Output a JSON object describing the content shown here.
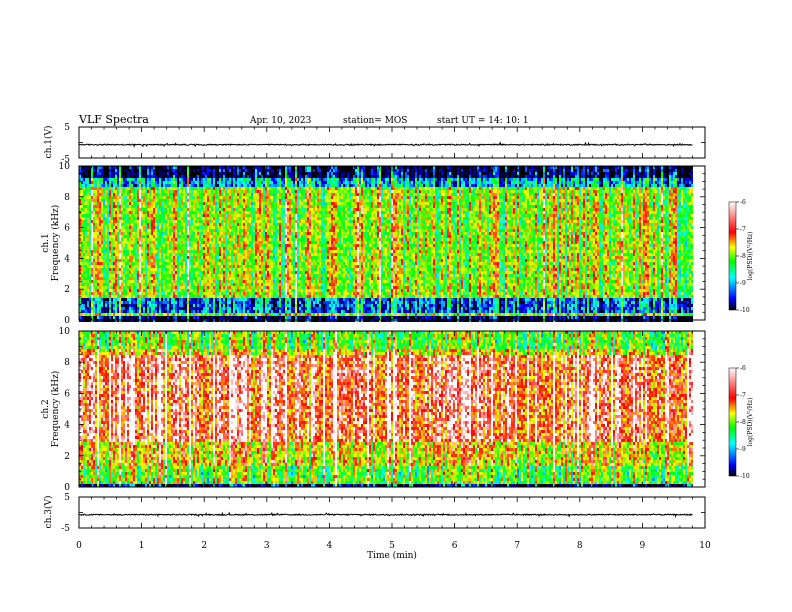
{
  "header": {
    "title": "VLF Spectra",
    "date": "Apr. 10, 2023",
    "station": "station= MOS",
    "start_ut": "start  UT =   14: 10: 1"
  },
  "chart_data": [
    {
      "type": "line",
      "panel": "ch1-waveform",
      "ylabel": "ch.1(V)",
      "ylim": [
        -5,
        5
      ],
      "yticks": [
        "5",
        "-5"
      ],
      "xlim": [
        0,
        10
      ],
      "trace_level": -0.7,
      "trace_color": "#000000"
    },
    {
      "type": "heatmap",
      "panel": "ch1-spectrogram",
      "ylabel_line1": "ch.1",
      "ylabel_line2": "Frequency (kHz)",
      "ylim": [
        0,
        10
      ],
      "yticks": [
        "0",
        "2",
        "4",
        "6",
        "8",
        "10"
      ],
      "xlim": [
        0,
        10
      ],
      "data_end_min": 9.8,
      "colorbar": {
        "label": "log(PSD)(V²/Hz)",
        "range": [
          -10,
          -6
        ],
        "ticks": [
          "-6",
          "-7",
          "-8",
          "-9",
          "-10"
        ],
        "colors": [
          "#000000",
          "#0000ff",
          "#00ffff",
          "#00ff00",
          "#ffff00",
          "#ff0000",
          "#ffffff"
        ]
      }
    },
    {
      "type": "heatmap",
      "panel": "ch2-spectrogram",
      "ylabel_line1": "ch.2",
      "ylabel_line2": "Frequency (kHz)",
      "ylim": [
        0,
        10
      ],
      "yticks": [
        "0",
        "2",
        "4",
        "6",
        "8",
        "10"
      ],
      "xlim": [
        0,
        10
      ],
      "data_end_min": 9.8,
      "colorbar": {
        "label": "log(PSD)(V²/Hz)",
        "range": [
          -10,
          -6
        ],
        "ticks": [
          "-6",
          "-7",
          "-8",
          "-9",
          "-10"
        ],
        "colors": [
          "#000000",
          "#0000ff",
          "#00ffff",
          "#00ff00",
          "#ffff00",
          "#ff0000",
          "#ffffff"
        ]
      }
    },
    {
      "type": "line",
      "panel": "ch3-waveform",
      "ylabel": "ch.3(V)",
      "ylim": [
        -5,
        5
      ],
      "yticks": [
        "5",
        "-5"
      ],
      "xlim": [
        0,
        10
      ],
      "trace_level": -0.7,
      "trace_color": "#000000"
    }
  ],
  "xaxis": {
    "label": "Time (min)",
    "ticks": [
      "0",
      "1",
      "2",
      "3",
      "4",
      "5",
      "6",
      "7",
      "8",
      "9",
      "10"
    ]
  }
}
